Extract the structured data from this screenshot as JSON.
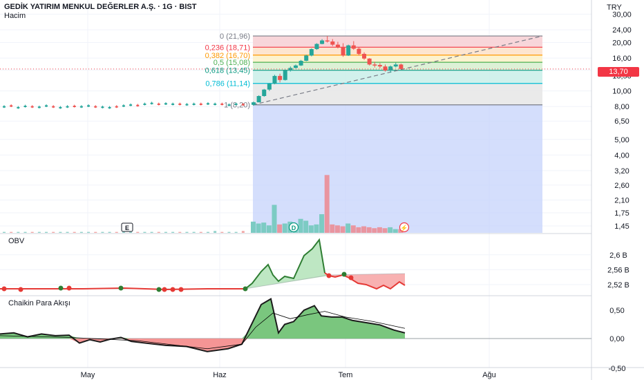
{
  "header": {
    "title": "GEDİK YATIRIM MENKUL DEĞERLER A.Ş. · 1G · BIST",
    "volume_label": "Hacim",
    "currency": "TRY",
    "last_price": "13,70"
  },
  "panels": {
    "obv_label": "OBV",
    "cmf_label": "Chaikin Para Akışı"
  },
  "colors": {
    "up": "#26a69a",
    "down": "#ef5350",
    "obv_up_fill": "#b7e4bd",
    "obv_down_fill": "#f7a9a9",
    "cmf_up": "#6cc070",
    "cmf_down": "#f48a8a",
    "selection": "#c6d3fb",
    "price_tag": "#f23645"
  },
  "events": {
    "earnings": "E",
    "dividend": "D",
    "split": "⚡"
  },
  "chart_data": [
    {
      "type": "candlestick",
      "title": "GEDİK YATIRIM MENKUL DEĞERLER A.Ş. · 1G · BIST",
      "scale": "log",
      "y_ticks": [
        "30,00",
        "24,00",
        "20,00",
        "16,00",
        "13,50",
        "10,00",
        "8,00",
        "6,50",
        "5,00",
        "4,00",
        "3,20",
        "2,60",
        "2,10",
        "1,75",
        "1,45"
      ],
      "x_ticks": [
        "May",
        "Haz",
        "Tem",
        "Ağu"
      ],
      "fib_levels": [
        {
          "label": "0 (21,96)",
          "value": 21.96,
          "color": "#787b86"
        },
        {
          "label": "0,236 (18,71)",
          "value": 18.71,
          "color": "#f23645"
        },
        {
          "label": "0,382 (16,70)",
          "value": 16.7,
          "color": "#ff9800"
        },
        {
          "label": "0,5 (15,08)",
          "value": 15.08,
          "color": "#4caf50"
        },
        {
          "label": "0,618 (13,45)",
          "value": 13.45,
          "color": "#089981"
        },
        {
          "label": "0,786 (11,14)",
          "value": 11.14,
          "color": "#00bcd4"
        },
        {
          "label": "1 (8,20)",
          "value": 8.2,
          "color": "#787b86"
        }
      ],
      "ohlc_before_june": [
        8.0,
        8.1,
        7.9,
        8.05,
        8.0,
        7.95,
        8.1,
        8.0,
        7.9,
        8.0,
        8.05,
        8.0,
        8.1,
        8.0,
        7.95,
        7.9,
        8.0,
        8.1,
        8.2,
        8.15,
        8.3,
        8.4,
        8.3,
        8.35,
        8.3,
        8.3,
        8.25,
        8.3,
        8.3,
        8.35,
        8.3,
        8.3,
        8.2,
        8.3,
        8.25
      ],
      "candles": [
        {
          "o": 8.2,
          "h": 8.6,
          "l": 8.1,
          "c": 8.5
        },
        {
          "o": 8.5,
          "h": 9.4,
          "l": 8.5,
          "c": 9.3
        },
        {
          "o": 9.3,
          "h": 10.3,
          "l": 9.2,
          "c": 10.2
        },
        {
          "o": 10.2,
          "h": 11.2,
          "l": 10.0,
          "c": 11.1
        },
        {
          "o": 11.1,
          "h": 12.6,
          "l": 11.0,
          "c": 12.4
        },
        {
          "o": 12.4,
          "h": 12.8,
          "l": 11.3,
          "c": 11.7
        },
        {
          "o": 11.7,
          "h": 13.6,
          "l": 11.6,
          "c": 13.4
        },
        {
          "o": 13.4,
          "h": 14.2,
          "l": 13.2,
          "c": 13.9
        },
        {
          "o": 13.9,
          "h": 14.6,
          "l": 13.8,
          "c": 14.4
        },
        {
          "o": 14.4,
          "h": 15.6,
          "l": 14.3,
          "c": 15.4
        },
        {
          "o": 15.4,
          "h": 16.8,
          "l": 15.3,
          "c": 16.6
        },
        {
          "o": 16.6,
          "h": 18.4,
          "l": 16.4,
          "c": 18.2
        },
        {
          "o": 18.2,
          "h": 19.8,
          "l": 18.0,
          "c": 19.6
        },
        {
          "o": 19.6,
          "h": 21.0,
          "l": 19.5,
          "c": 20.6
        },
        {
          "o": 20.6,
          "h": 21.96,
          "l": 20.0,
          "c": 20.3
        },
        {
          "o": 20.3,
          "h": 21.0,
          "l": 19.0,
          "c": 19.4
        },
        {
          "o": 19.4,
          "h": 20.2,
          "l": 18.4,
          "c": 18.6
        },
        {
          "o": 18.6,
          "h": 19.8,
          "l": 16.3,
          "c": 16.6
        },
        {
          "o": 16.6,
          "h": 19.4,
          "l": 16.5,
          "c": 19.2
        },
        {
          "o": 19.2,
          "h": 20.4,
          "l": 18.0,
          "c": 18.3
        },
        {
          "o": 18.3,
          "h": 18.6,
          "l": 16.6,
          "c": 17.0
        },
        {
          "o": 17.0,
          "h": 17.4,
          "l": 15.6,
          "c": 15.9
        },
        {
          "o": 15.9,
          "h": 16.0,
          "l": 14.4,
          "c": 14.6
        },
        {
          "o": 14.6,
          "h": 15.2,
          "l": 14.0,
          "c": 14.5
        },
        {
          "o": 14.5,
          "h": 14.9,
          "l": 13.8,
          "c": 14.2
        },
        {
          "o": 14.2,
          "h": 14.6,
          "l": 13.2,
          "c": 13.4
        },
        {
          "o": 13.4,
          "h": 14.4,
          "l": 13.0,
          "c": 14.2
        },
        {
          "o": 14.2,
          "h": 15.0,
          "l": 14.0,
          "c": 14.6
        },
        {
          "o": 14.6,
          "h": 14.8,
          "l": 13.6,
          "c": 13.7
        }
      ],
      "volume_before_june": [
        1,
        1,
        1,
        1,
        1,
        1,
        1,
        1,
        1,
        1,
        1,
        1,
        1,
        1,
        1,
        1,
        1,
        1,
        1,
        1,
        1,
        1,
        1,
        1,
        1,
        1,
        1,
        1,
        1,
        1,
        2,
        1,
        1,
        1,
        2
      ],
      "volume": [
        12,
        10,
        11,
        8,
        30,
        9,
        10,
        12,
        9,
        15,
        13,
        8,
        9,
        20,
        62,
        9,
        8,
        7,
        10,
        8,
        6,
        7,
        6,
        5,
        6,
        5,
        6,
        4,
        4
      ]
    },
    {
      "type": "line",
      "title": "OBV",
      "y_ticks": [
        "2,6 B",
        "2,56 B",
        "2,52 B"
      ]
    },
    {
      "type": "area",
      "title": "Chaikin Para Akışı",
      "y_ticks": [
        "0,50",
        "0,00",
        "-0,50"
      ]
    }
  ]
}
